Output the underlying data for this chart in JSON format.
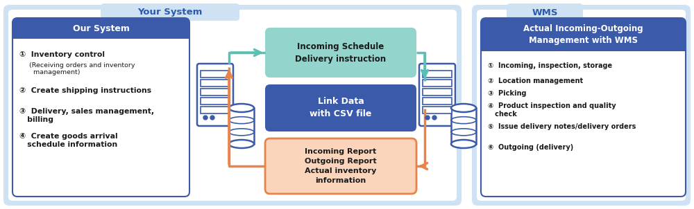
{
  "fig_width": 10.0,
  "fig_height": 3.02,
  "bg_color": "#ffffff",
  "your_system_label": "Your System",
  "wms_label": "WMS",
  "panel_bg": "#cfe2f3",
  "our_system_title": "Our System",
  "our_system_title_bg": "#3b5baa",
  "our_system_border": "#3b5baa",
  "our_system_items_line1": "①  Inventory control",
  "our_system_items_line2": "(Receiving orders and inventory\n  management)",
  "our_system_items_line3": "②  Create shipping instructions",
  "our_system_items_line4": "③  Delivery, sales management,\n   billing",
  "our_system_items_line5": "④  Create goods arrival\n   schedule information",
  "wms_box_title": "Actual Incoming-Outgoing\nManagement with WMS",
  "wms_box_title_bg": "#3b5baa",
  "wms_box_border": "#3b5baa",
  "wms_box_item1": "①  Incoming, inspection, storage",
  "wms_box_item2": "②  Location management",
  "wms_box_item3": "③  Picking",
  "wms_box_item4": "④  Product inspection and quality\n   check",
  "wms_box_item5": "⑤  Issue delivery notes/delivery orders",
  "wms_box_item6": "⑥  Outgoing (delivery)",
  "top_box_text": "Incoming Schedule\nDelivery instruction",
  "top_box_bg": "#93d5cc",
  "mid_box_text": "Link Data\nwith CSV file",
  "mid_box_bg": "#3b5baa",
  "bot_box_text": "Incoming Report\nOutgoing Report\nActual inventory\ninformation",
  "bot_box_bg": "#fad5bc",
  "bot_box_border": "#e8834a",
  "arrow_teal": "#5abfb5",
  "arrow_orange": "#e8834a",
  "icon_color": "#3b5baa"
}
